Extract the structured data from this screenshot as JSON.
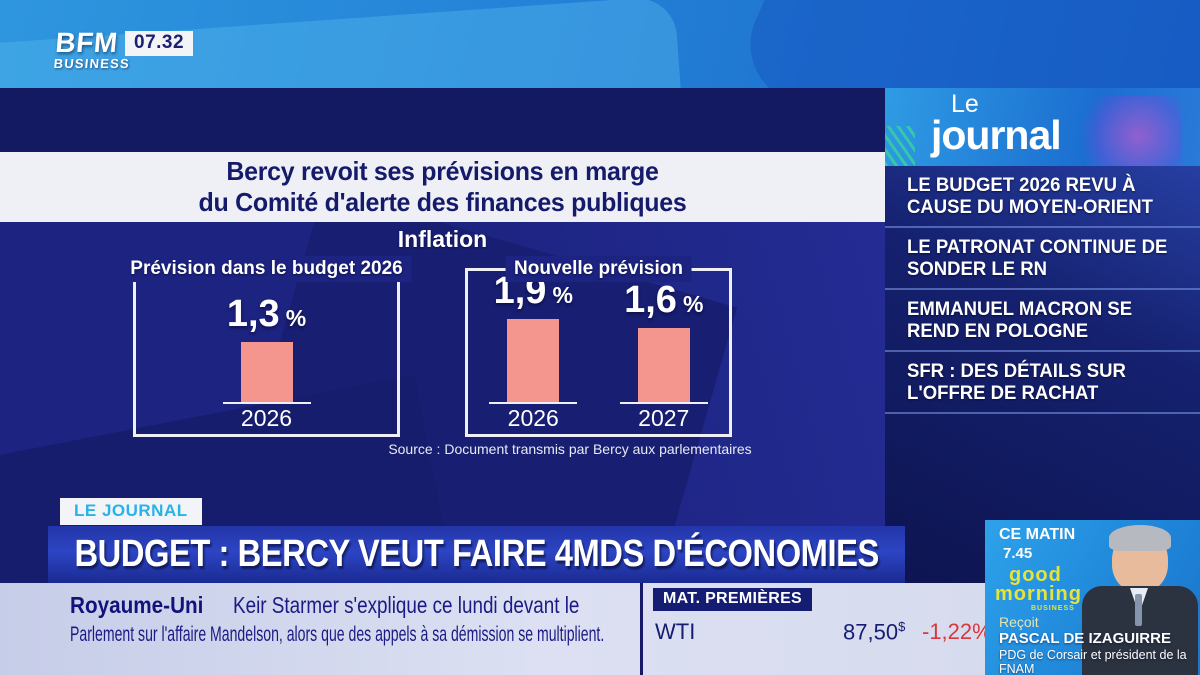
{
  "header": {
    "channel": "BFM",
    "channel_sub": "BUSINESS",
    "time": "07.32"
  },
  "chart_data": {
    "type": "bar",
    "title": "Bercy revoit ses prévisions en marge du Comité d'alerte des finances publiques",
    "title_line1": "Bercy revoit ses prévisions en marge",
    "title_line2": "du Comité d'alerte des finances publiques",
    "subtitle": "Inflation",
    "unit": "%",
    "ylim": [
      0,
      2.2
    ],
    "bar_color": "#f4968e",
    "source": "Source : Document transmis par Bercy aux parlementaires",
    "groups": [
      {
        "name": "Prévision dans le budget 2026",
        "categories": [
          "2026"
        ],
        "values": [
          1.3
        ],
        "value_labels": [
          "1,3"
        ]
      },
      {
        "name": "Nouvelle prévision",
        "categories": [
          "2026",
          "2027"
        ],
        "values": [
          1.9,
          1.6
        ],
        "value_labels": [
          "1,9",
          "1,6"
        ]
      }
    ]
  },
  "sidebar": {
    "logo_top": "Le",
    "logo_bottom": "journal",
    "headlines": [
      {
        "text": "LE BUDGET 2026 REVU À CAUSE DU MOYEN-ORIENT"
      },
      {
        "text": "LE PATRONAT CONTINUE DE SONDER LE RN"
      },
      {
        "text": "EMMANUEL MACRON SE REND EN POLOGNE"
      },
      {
        "text": "SFR : DES DÉTAILS SUR L'OFFRE DE RACHAT"
      }
    ]
  },
  "banner": {
    "tag": "LE JOURNAL",
    "headline": "BUDGET : BERCY VEUT FAIRE 4MDS D'ÉCONOMIES"
  },
  "ticker": {
    "topic": "Royaume-Uni",
    "line1": "Keir Starmer s'explique ce lundi devant le",
    "line2": "Parlement sur l'affaire Mandelson, alors que des appels à sa démission se multiplient."
  },
  "markets": {
    "label": "MAT. PREMIÈRES",
    "symbol": "WTI",
    "price": "87,50",
    "currency": "$",
    "change": "-1,22%",
    "change_color": "#d6383e"
  },
  "guest": {
    "when": "CE MATIN",
    "time": "7.45",
    "show_line1": "good",
    "show_line2": "morning",
    "show_sub": "BUSINESS",
    "receives": "Reçoit",
    "name": "PASCAL DE IZAGUIRRE",
    "title_line1": "PDG de Corsair et président de la",
    "title_line2": "FNAM"
  }
}
